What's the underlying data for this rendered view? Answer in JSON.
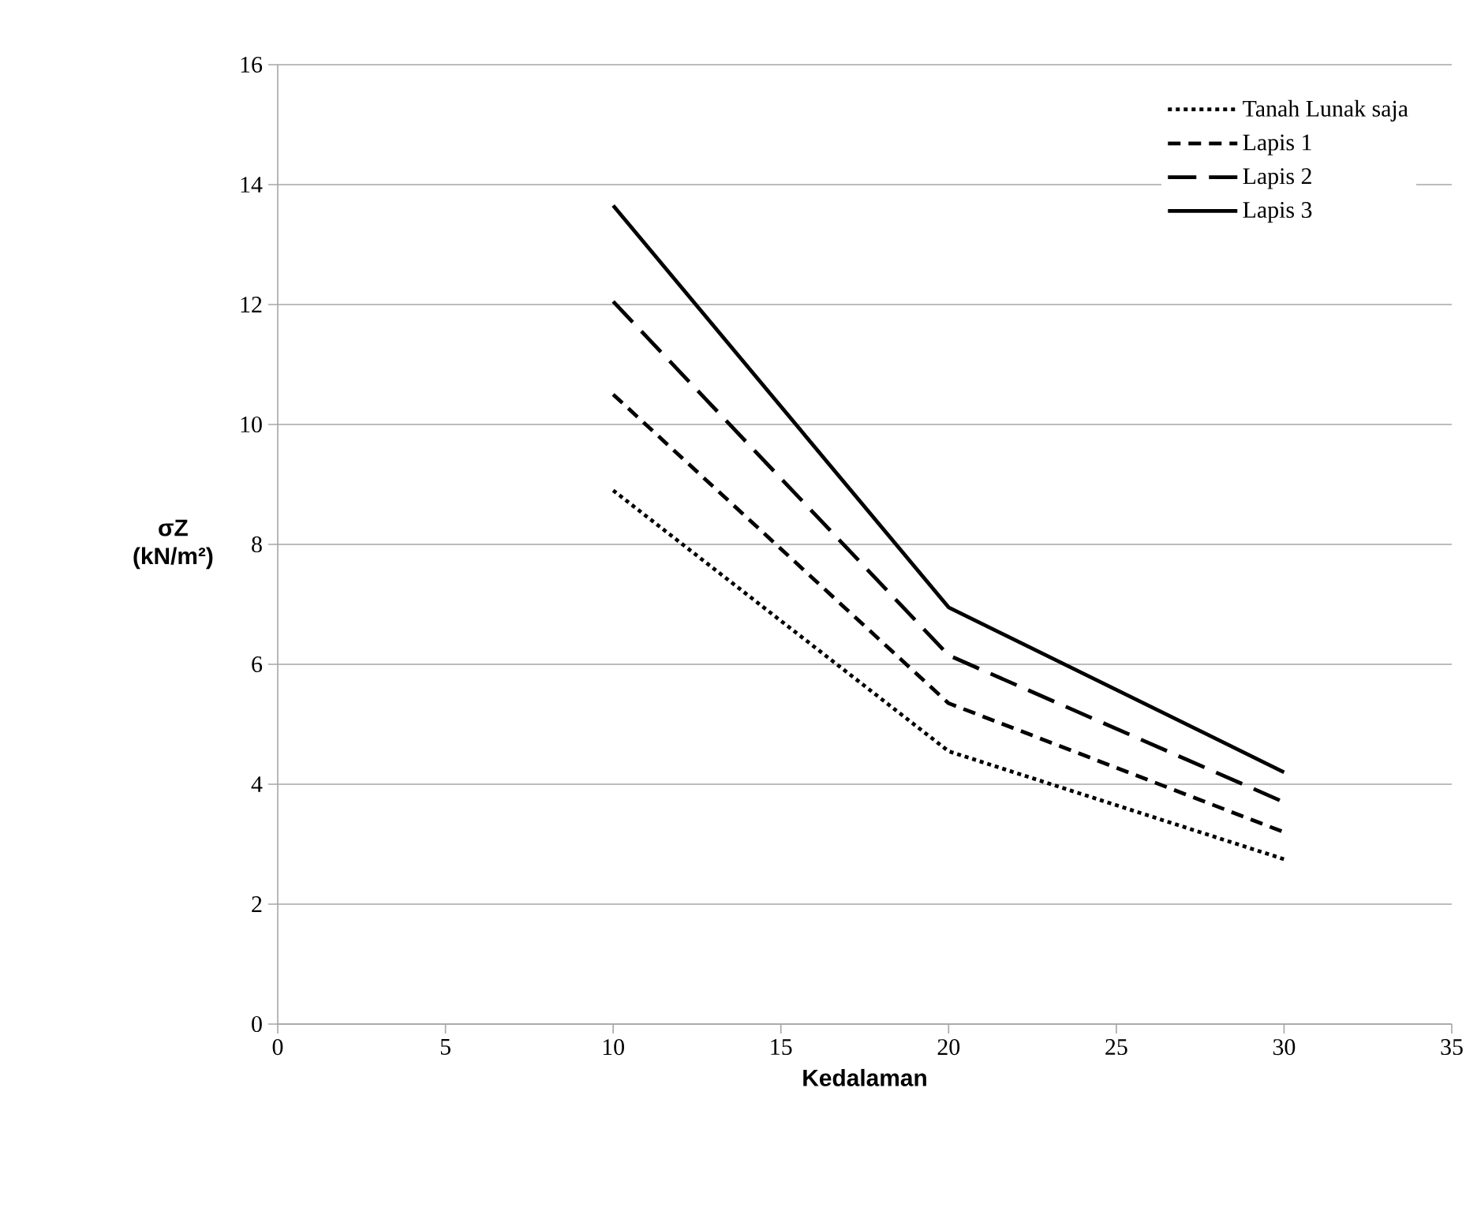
{
  "chart_data": {
    "type": "line",
    "xlabel": "Kedalaman",
    "ylabel": "σZ (kN/m²)",
    "x": [
      10,
      20,
      30
    ],
    "series": [
      {
        "name": "Tanah Lunak saja",
        "color": "#000000",
        "line_style": "dotted",
        "values": [
          8.9,
          4.55,
          2.75
        ]
      },
      {
        "name": "Lapis 1",
        "color": "#000000",
        "line_style": "dashed",
        "values": [
          10.5,
          5.35,
          3.2
        ]
      },
      {
        "name": "Lapis 2",
        "color": "#000000",
        "line_style": "dashed",
        "values": [
          12.05,
          6.15,
          3.7
        ]
      },
      {
        "name": "Lapis 3",
        "color": "#000000",
        "line_style": "solid",
        "values": [
          13.65,
          6.95,
          4.2
        ]
      }
    ],
    "xlim": [
      0,
      35
    ],
    "xticks": [
      0,
      5,
      10,
      15,
      20,
      25,
      30,
      35
    ],
    "ylim": [
      0,
      16
    ],
    "yticks": [
      0,
      2,
      4,
      6,
      8,
      10,
      12,
      14,
      16
    ],
    "grid": "y",
    "legend": "top right",
    "marker": "none"
  }
}
